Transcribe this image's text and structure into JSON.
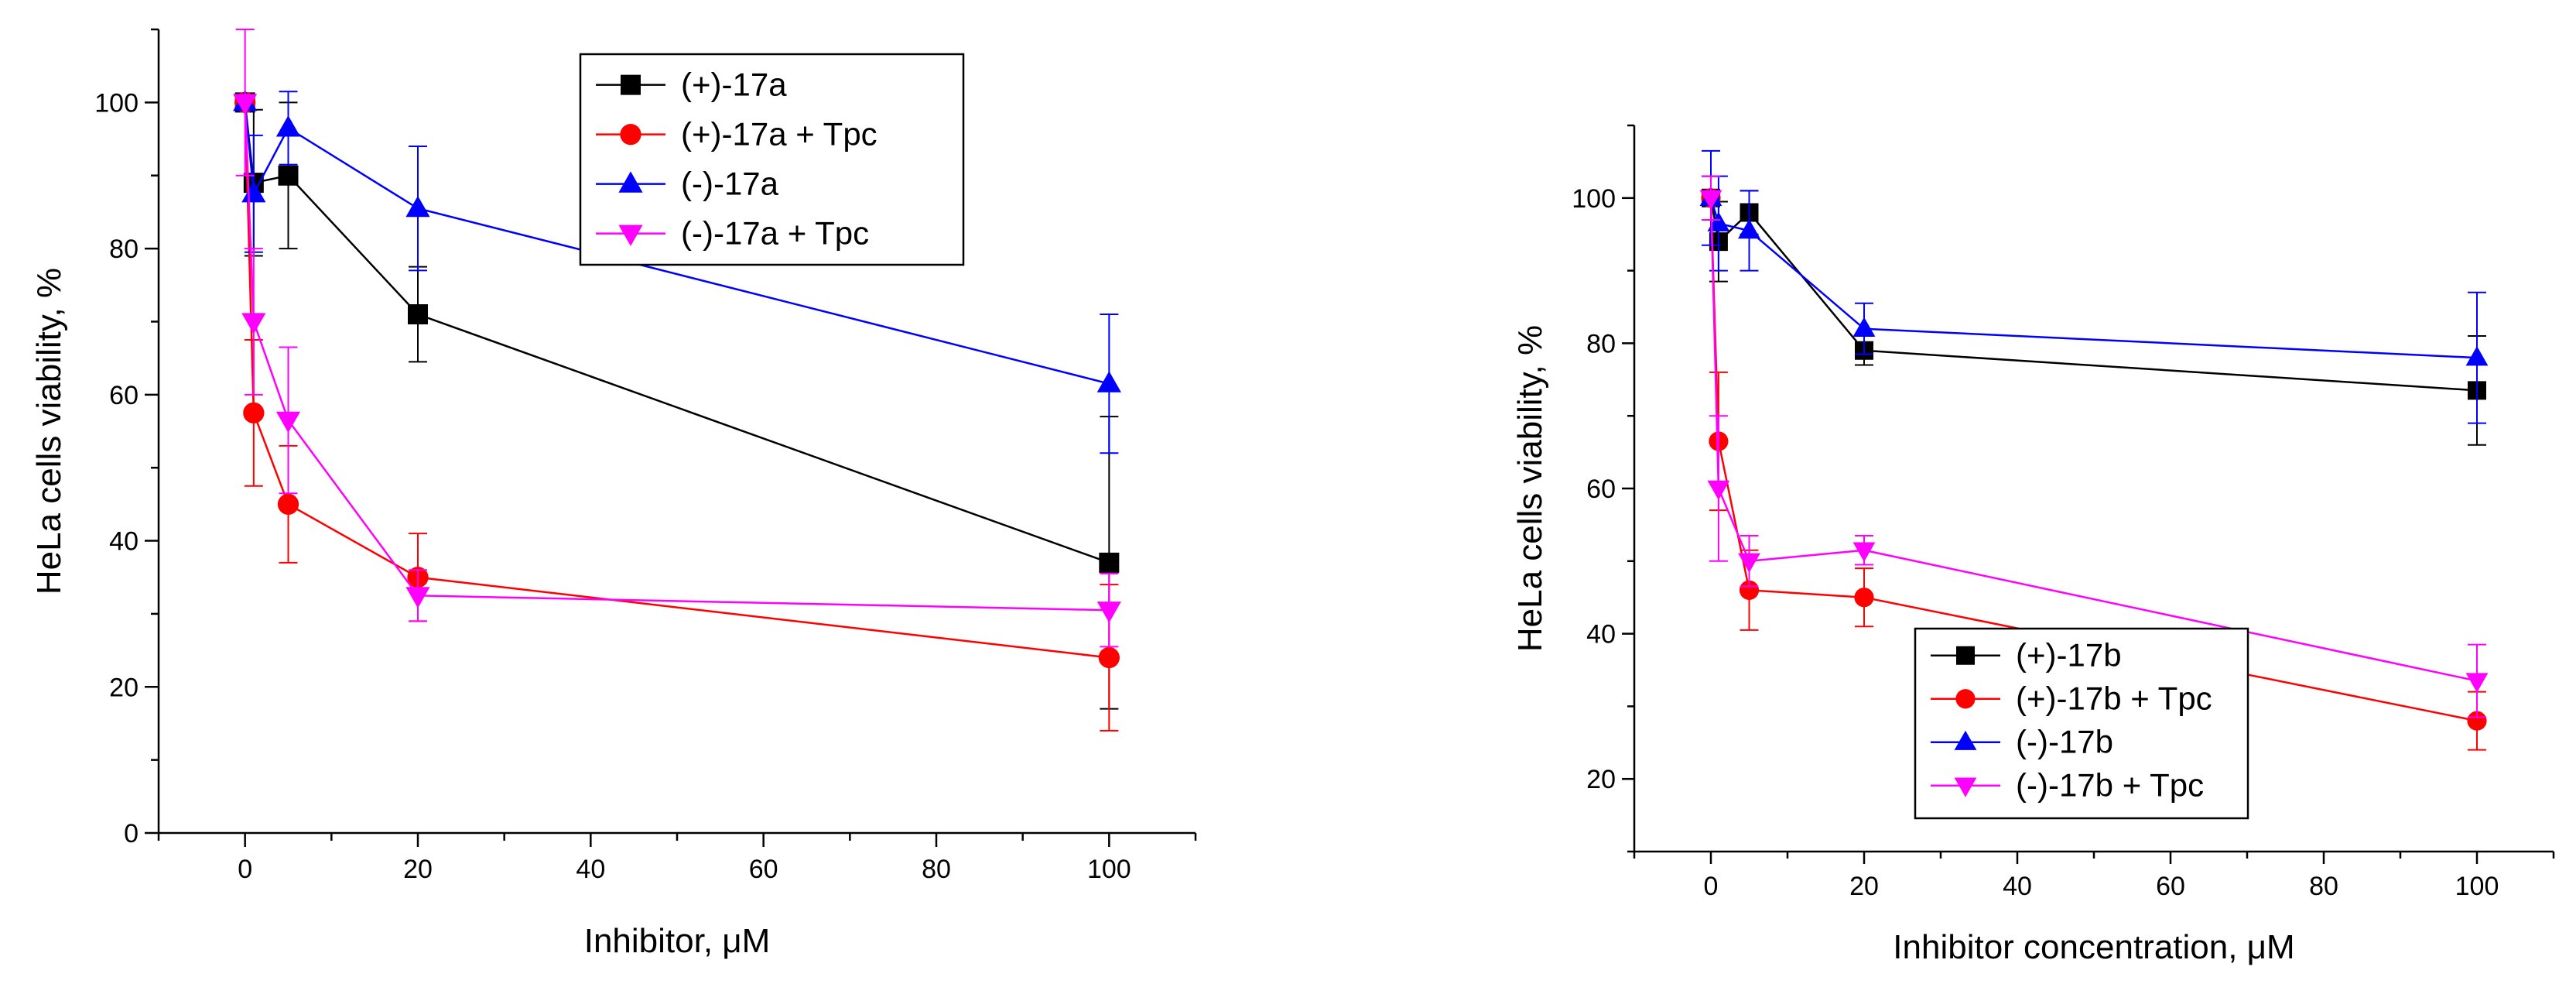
{
  "chart_data": [
    {
      "type": "line",
      "title": "",
      "xlabel": "Inhibitor, μM",
      "ylabel": "HeLa cells viability, %",
      "xlim": [
        -10,
        110
      ],
      "ylim": [
        0,
        110
      ],
      "xticks": [
        0,
        20,
        40,
        60,
        80,
        100
      ],
      "yticks": [
        0,
        20,
        40,
        60,
        80,
        100
      ],
      "legend_position": "top-center",
      "series": [
        {
          "name": "(+)-17a",
          "color": "#000000",
          "marker": "square",
          "x": [
            0,
            1,
            5,
            20,
            100
          ],
          "y": [
            100,
            89,
            90,
            71,
            37
          ],
          "error": [
            0,
            10,
            10,
            6.5,
            20
          ]
        },
        {
          "name": "(+)-17a + Tpc",
          "color": "#ff0000",
          "marker": "circle",
          "x": [
            0,
            1,
            5,
            20,
            100
          ],
          "y": [
            100,
            57.5,
            45,
            35,
            24
          ],
          "error": [
            0,
            10,
            8,
            6,
            10
          ]
        },
        {
          "name": "(-)-17a",
          "color": "#0000ff",
          "marker": "triangle-up",
          "x": [
            0,
            1,
            5,
            20,
            100
          ],
          "y": [
            100,
            87.5,
            96.5,
            85.5,
            61.5
          ],
          "error": [
            0,
            8,
            5,
            8.5,
            9.5
          ]
        },
        {
          "name": "(-)-17a + Tpc",
          "color": "#ff00ff",
          "marker": "triangle-down",
          "x": [
            0,
            1,
            5,
            20,
            100
          ],
          "y": [
            100,
            70,
            56.5,
            32.5,
            30.5
          ],
          "error": [
            10,
            10,
            10,
            3.5,
            5
          ]
        }
      ]
    },
    {
      "type": "line",
      "title": "",
      "xlabel": "Inhibitor concentration, μM",
      "ylabel": "HeLa cells viability, %",
      "xlim": [
        -10,
        110
      ],
      "ylim": [
        10,
        110
      ],
      "xticks": [
        0,
        20,
        40,
        60,
        80,
        100
      ],
      "yticks": [
        20,
        40,
        60,
        80,
        100
      ],
      "legend_position": "bottom-right",
      "series": [
        {
          "name": "(+)-17b",
          "color": "#000000",
          "marker": "square",
          "x": [
            0,
            1,
            5,
            20,
            100
          ],
          "y": [
            100,
            94,
            98,
            79,
            73.5
          ],
          "error": [
            3,
            5.5,
            3,
            2,
            7.5
          ]
        },
        {
          "name": "(+)-17b + Tpc",
          "color": "#ff0000",
          "marker": "circle",
          "x": [
            0,
            1,
            5,
            20,
            100
          ],
          "y": [
            100,
            66.5,
            46,
            45,
            28
          ],
          "error": [
            3,
            9.5,
            5.5,
            4,
            4
          ]
        },
        {
          "name": "(-)-17b",
          "color": "#0000ff",
          "marker": "triangle-up",
          "x": [
            0,
            1,
            5,
            20,
            100
          ],
          "y": [
            100,
            96.5,
            95.5,
            82,
            78
          ],
          "error": [
            6.5,
            6.5,
            5.5,
            3.5,
            9
          ]
        },
        {
          "name": "(-)-17b + Tpc",
          "color": "#ff00ff",
          "marker": "triangle-down",
          "x": [
            0,
            1,
            5,
            20,
            100
          ],
          "y": [
            100,
            60,
            50,
            51.5,
            33.5
          ],
          "error": [
            3,
            10,
            3.5,
            2,
            5
          ]
        }
      ]
    }
  ]
}
